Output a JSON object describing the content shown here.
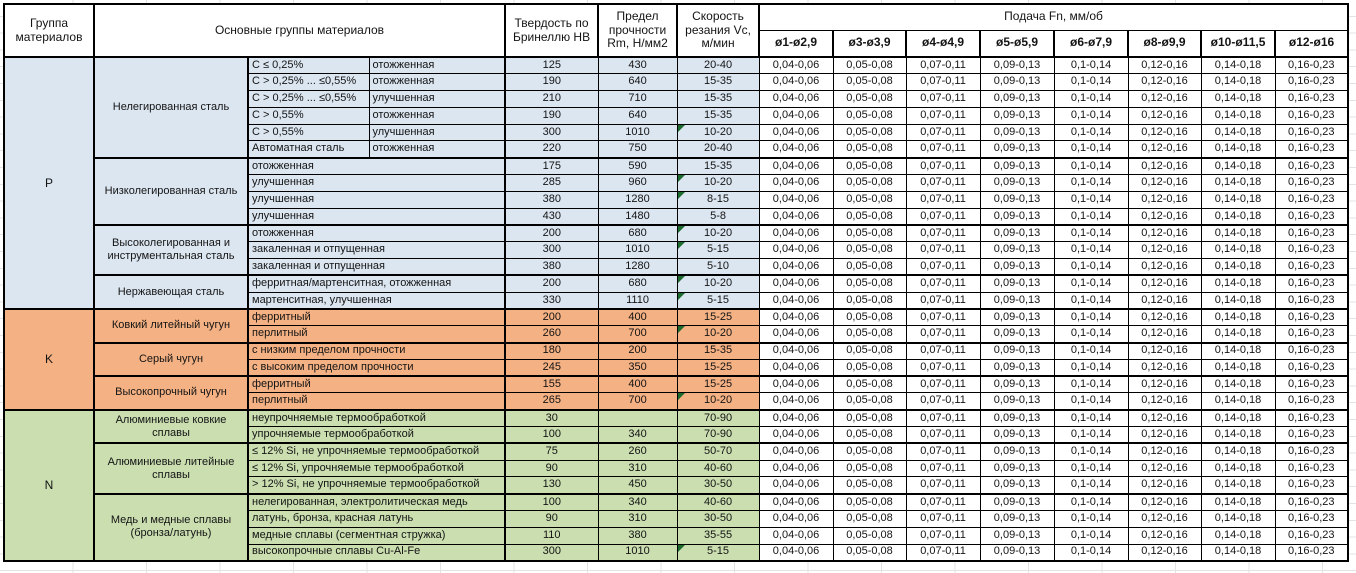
{
  "header": {
    "group": "Группа материалов",
    "main_groups": "Основные группы материалов",
    "hardness": "Твердость по Бринеллю HB",
    "strength": "Предел прочности Rm, Н/мм2",
    "speed": "Скорость резания Vc, м/мин",
    "feed": "Подача Fn, мм/об",
    "feed_columns": [
      "ø1-ø2,9",
      "ø3-ø3,9",
      "ø4-ø4,9",
      "ø5-ø5,9",
      "ø6-ø7,9",
      "ø8-ø9,9",
      "ø10-ø11,5",
      "ø12-ø16"
    ]
  },
  "feed_values": [
    "0,04-0,06",
    "0,05-0,08",
    "0,07-0,11",
    "0,09-0,13",
    "0,1-0,14",
    "0,12-0,16",
    "0,14-0,18",
    "0,16-0,23"
  ],
  "colors": {
    "group_p": "#dce6f1",
    "group_k": "#f4b183",
    "group_n": "#cadeb0",
    "note_marker": "#1e6b30"
  },
  "groups": [
    {
      "code": "P",
      "color": "#dce6f1",
      "subgroups": [
        {
          "name": "Нелегированная сталь",
          "rows": [
            {
              "composition": "C ≤ 0,25%",
              "state": "отожженная",
              "hb": "125",
              "rm": "430",
              "vc": "20-40",
              "note": false
            },
            {
              "composition": "C > 0,25% ... ≤0,55%",
              "state": "отожженная",
              "hb": "190",
              "rm": "640",
              "vc": "15-35",
              "note": false
            },
            {
              "composition": "C > 0,25% ... ≤0,55%",
              "state": "улучшенная",
              "hb": "210",
              "rm": "710",
              "vc": "15-35",
              "note": false
            },
            {
              "composition": "C > 0,55%",
              "state": "отожженная",
              "hb": "190",
              "rm": "640",
              "vc": "15-35",
              "note": false
            },
            {
              "composition": "C > 0,55%",
              "state": "улучшенная",
              "hb": "300",
              "rm": "1010",
              "vc": "10-20",
              "note": true
            },
            {
              "composition": "Автоматная сталь",
              "state": "отожженная",
              "hb": "220",
              "rm": "750",
              "vc": "20-40",
              "note": false
            }
          ]
        },
        {
          "name": "Низколегированная сталь",
          "rows": [
            {
              "state": "отожженная",
              "hb": "175",
              "rm": "590",
              "vc": "15-35",
              "note": false
            },
            {
              "state": "улучшенная",
              "hb": "285",
              "rm": "960",
              "vc": "10-20",
              "note": true
            },
            {
              "state": "улучшенная",
              "hb": "380",
              "rm": "1280",
              "vc": "8-15",
              "note": true
            },
            {
              "state": "улучшенная",
              "hb": "430",
              "rm": "1480",
              "vc": "5-8",
              "note": false
            }
          ]
        },
        {
          "name": "Высоколегированная и инструментальная сталь",
          "rows": [
            {
              "state": "отожженная",
              "hb": "200",
              "rm": "680",
              "vc": "10-20",
              "note": true
            },
            {
              "state": "закаленная и отпущенная",
              "hb": "300",
              "rm": "1010",
              "vc": "5-15",
              "note": true
            },
            {
              "state": "закаленная и отпущенная",
              "hb": "380",
              "rm": "1280",
              "vc": "5-10",
              "note": false
            }
          ]
        },
        {
          "name": "Нержавеющая сталь",
          "rows": [
            {
              "state": "ферритная/мартенситная, отожженная",
              "hb": "200",
              "rm": "680",
              "vc": "10-20",
              "note": true
            },
            {
              "state": "мартенситная, улучшенная",
              "hb": "330",
              "rm": "1110",
              "vc": "5-15",
              "note": true
            }
          ]
        }
      ]
    },
    {
      "code": "K",
      "color": "#f4b183",
      "subgroups": [
        {
          "name": "Ковкий литейный чугун",
          "rows": [
            {
              "state": "ферритный",
              "hb": "200",
              "rm": "400",
              "vc": "15-25",
              "note": false
            },
            {
              "state": "перлитный",
              "hb": "260",
              "rm": "700",
              "vc": "10-20",
              "note": true
            }
          ]
        },
        {
          "name": "Серый чугун",
          "rows": [
            {
              "state": "с низким пределом прочности",
              "hb": "180",
              "rm": "200",
              "vc": "15-35",
              "note": false
            },
            {
              "state": "с высоким пределом прочности",
              "hb": "245",
              "rm": "350",
              "vc": "15-25",
              "note": false
            }
          ]
        },
        {
          "name": "Высокопрочный чугун",
          "rows": [
            {
              "state": "ферритный",
              "hb": "155",
              "rm": "400",
              "vc": "15-25",
              "note": false
            },
            {
              "state": "перлитный",
              "hb": "265",
              "rm": "700",
              "vc": "10-20",
              "note": true
            }
          ]
        }
      ]
    },
    {
      "code": "N",
      "color": "#cadeb0",
      "subgroups": [
        {
          "name": "Алюминиевые ковкие сплавы",
          "rows": [
            {
              "state": "неупрочняемые термообработкой",
              "hb": "30",
              "rm": "",
              "vc": "70-90",
              "note": false
            },
            {
              "state": "упрочняемые термообработкой",
              "hb": "100",
              "rm": "340",
              "vc": "70-90",
              "note": false
            }
          ]
        },
        {
          "name": "Алюминиевые литейные сплавы",
          "rows": [
            {
              "state": "≤ 12% Si, не упрочняемые термообработкой",
              "hb": "75",
              "rm": "260",
              "vc": "50-70",
              "note": false
            },
            {
              "state": "≤ 12% Si, упрочняемые термообработкой",
              "hb": "90",
              "rm": "310",
              "vc": "40-60",
              "note": false
            },
            {
              "state": "> 12% Si, не упрочняемые термообработкой",
              "hb": "130",
              "rm": "450",
              "vc": "30-50",
              "note": false
            }
          ]
        },
        {
          "name": "Медь и медные сплавы (бронза/латунь)",
          "rows": [
            {
              "state": "нелегированная, электролитическая медь",
              "hb": "100",
              "rm": "340",
              "vc": "40-60",
              "note": false
            },
            {
              "state": "латунь, бронза, красная латунь",
              "hb": "90",
              "rm": "310",
              "vc": "30-50",
              "note": false
            },
            {
              "state": "медные сплавы (сегментная стружка)",
              "hb": "110",
              "rm": "380",
              "vc": "35-55",
              "note": false
            },
            {
              "state": "высокопрочные сплавы Cu-Al-Fe",
              "hb": "300",
              "rm": "1010",
              "vc": "5-15",
              "note": true
            }
          ]
        }
      ]
    }
  ]
}
